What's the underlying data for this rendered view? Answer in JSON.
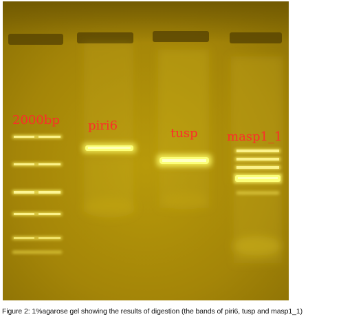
{
  "figure": {
    "lane_labels": [
      "2000bp",
      "piri6",
      "tusp",
      "masp1_1"
    ],
    "caption": "Figure 2: 1%agarose gel showing the results of digestion (the bands of piri6, tusp and masp1_1)"
  },
  "colors": {
    "gel_background": "#a88a07",
    "gel_dark": "#7a6203",
    "band_bright": "#fbff7a",
    "label_red": "#ff2a2a",
    "caption_text": "#111111"
  }
}
